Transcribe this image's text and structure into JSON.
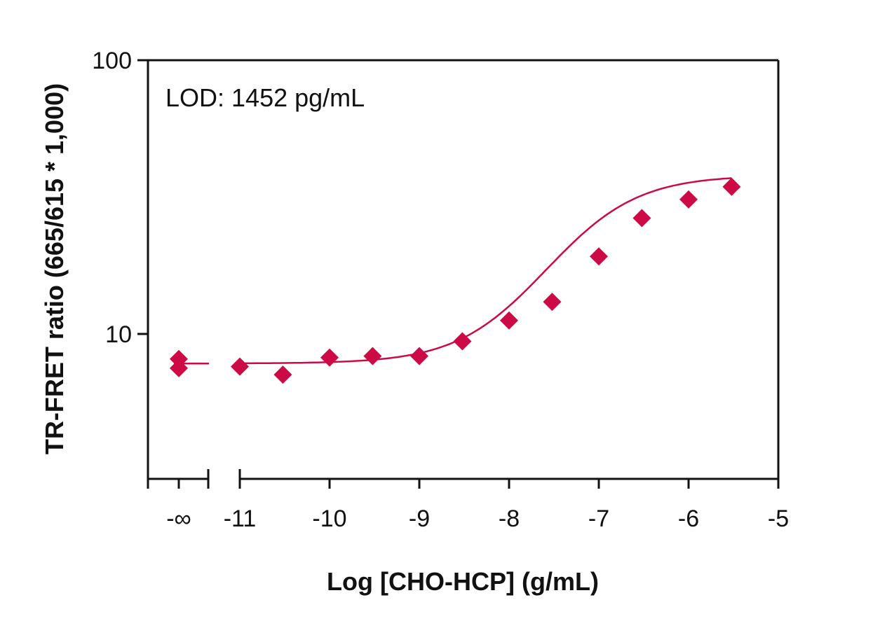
{
  "chart_data": {
    "type": "scatter",
    "xlabel": "Log [CHO-HCP] (g/mL)",
    "ylabel": "TR-FRET ratio (665/615 * 1,000)",
    "annotation": "LOD: 1452 pg/mL",
    "y_scale": "log",
    "ylim": [
      4,
      100
    ],
    "xlim": [
      -11.7,
      -5
    ],
    "x_ticks": [
      {
        "value": "-inf",
        "label": "-∞"
      },
      {
        "value": -11,
        "label": "-11"
      },
      {
        "value": -10,
        "label": "-10"
      },
      {
        "value": -9,
        "label": "-9"
      },
      {
        "value": -8,
        "label": "-8"
      },
      {
        "value": -7,
        "label": "-7"
      },
      {
        "value": -6,
        "label": "-6"
      },
      {
        "value": -5,
        "label": "-5"
      }
    ],
    "y_ticks": [
      {
        "value": 10,
        "label": "10"
      },
      {
        "value": 100,
        "label": "100"
      }
    ],
    "axis_break": "between -∞ and -11",
    "grid": false,
    "legend": "none",
    "marker": "diamond",
    "color": "#CC0A46",
    "zero_points": [
      8.1,
      7.5
    ],
    "points": [
      {
        "x": -11,
        "y": 7.6
      },
      {
        "x": -10.52,
        "y": 7.1
      },
      {
        "x": -10,
        "y": 8.2
      },
      {
        "x": -9.52,
        "y": 8.3
      },
      {
        "x": -9,
        "y": 8.3
      },
      {
        "x": -8.52,
        "y": 9.4
      },
      {
        "x": -8,
        "y": 11.2
      },
      {
        "x": -7.52,
        "y": 13.1
      },
      {
        "x": -7,
        "y": 19.2
      },
      {
        "x": -6.52,
        "y": 26.5
      },
      {
        "x": -6,
        "y": 31.0
      },
      {
        "x": -5.52,
        "y": 34.5
      }
    ],
    "fit": {
      "bottom": 7.8,
      "top": 38,
      "log_ec50": -7.2,
      "hill": 0.9
    }
  }
}
